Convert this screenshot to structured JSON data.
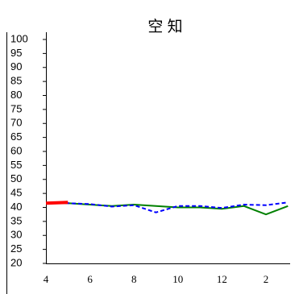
{
  "chart_data": {
    "type": "line",
    "title": "空 知",
    "categories": [
      "4",
      null,
      "6",
      null,
      "8",
      null,
      "10",
      null,
      "12",
      null,
      "2",
      null
    ],
    "series": [
      {
        "color": "#008000",
        "dash": false,
        "values": [
          41.5,
          41.5,
          41,
          40.5,
          41,
          40.5,
          40,
          40,
          39.5,
          40.5,
          37.5,
          40.5
        ]
      },
      {
        "color": "#0000ff",
        "dash": true,
        "values": [
          41.5,
          41.5,
          41.2,
          40.3,
          40.8,
          38.2,
          40.5,
          40.5,
          39.8,
          41,
          40.8,
          41.8
        ]
      },
      {
        "color": "#ff0000",
        "dash": false,
        "width": 4,
        "values": [
          41.5,
          41.8,
          null,
          null,
          null,
          null,
          null,
          null,
          null,
          null,
          null,
          null
        ]
      }
    ],
    "ylim": [
      20,
      100
    ],
    "yticks": [
      20,
      25,
      30,
      35,
      40,
      45,
      50,
      55,
      60,
      65,
      70,
      75,
      80,
      85,
      90,
      95,
      100
    ]
  }
}
